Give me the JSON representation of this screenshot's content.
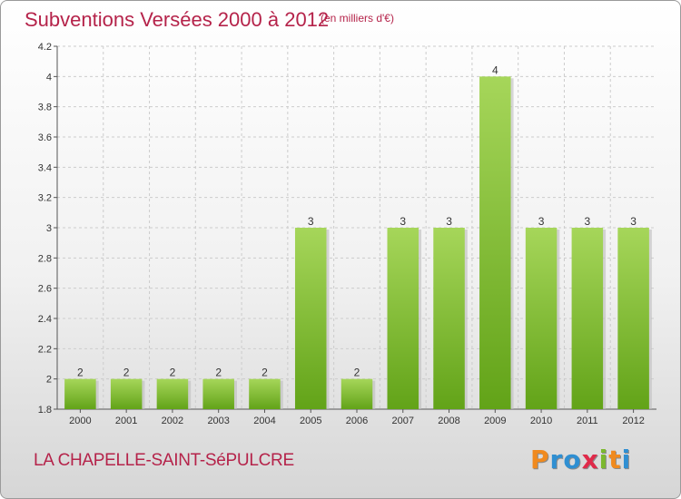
{
  "header": {
    "title": "Subventions Versées 2000 à 2012",
    "unit": "(en milliers d'€)"
  },
  "footer": {
    "commune": "LA CHAPELLE-SAINT-SéPULCRE",
    "logo": {
      "letters": [
        "P",
        "r",
        "o",
        "x",
        "i",
        "t",
        "i"
      ],
      "colors": [
        "#f08a1e",
        "#2f8fd2",
        "#2f8fd2",
        "#e02a4a",
        "#7cb82f",
        "#f08a1e",
        "#2f8fd2"
      ]
    }
  },
  "colors": {
    "accent": "#b5234a",
    "bar_top": "#a6d65a",
    "bar_bottom": "#62a318",
    "grid": "#cccccc"
  },
  "chart_data": {
    "type": "bar",
    "categories": [
      "2000",
      "2001",
      "2002",
      "2003",
      "2004",
      "2005",
      "2006",
      "2007",
      "2008",
      "2009",
      "2010",
      "2011",
      "2012"
    ],
    "values": [
      2,
      2,
      2,
      2,
      2,
      3,
      2,
      3,
      3,
      4,
      3,
      3,
      3
    ],
    "data_labels": [
      "2",
      "2",
      "2",
      "2",
      "2",
      "3",
      "2",
      "3",
      "3",
      "4",
      "3",
      "3",
      "3"
    ],
    "yticks": [
      1.8,
      2,
      2.2,
      2.4,
      2.6,
      2.8,
      3,
      3.2,
      3.4,
      3.6,
      3.8,
      4,
      4.2
    ],
    "ytick_labels": [
      "1.8",
      "2",
      "2.2",
      "2.4",
      "2.6",
      "2.8",
      "3",
      "3.2",
      "3.4",
      "3.6",
      "3.8",
      "4",
      "4.2"
    ],
    "ylim": [
      1.8,
      4.2
    ],
    "grid": true
  }
}
